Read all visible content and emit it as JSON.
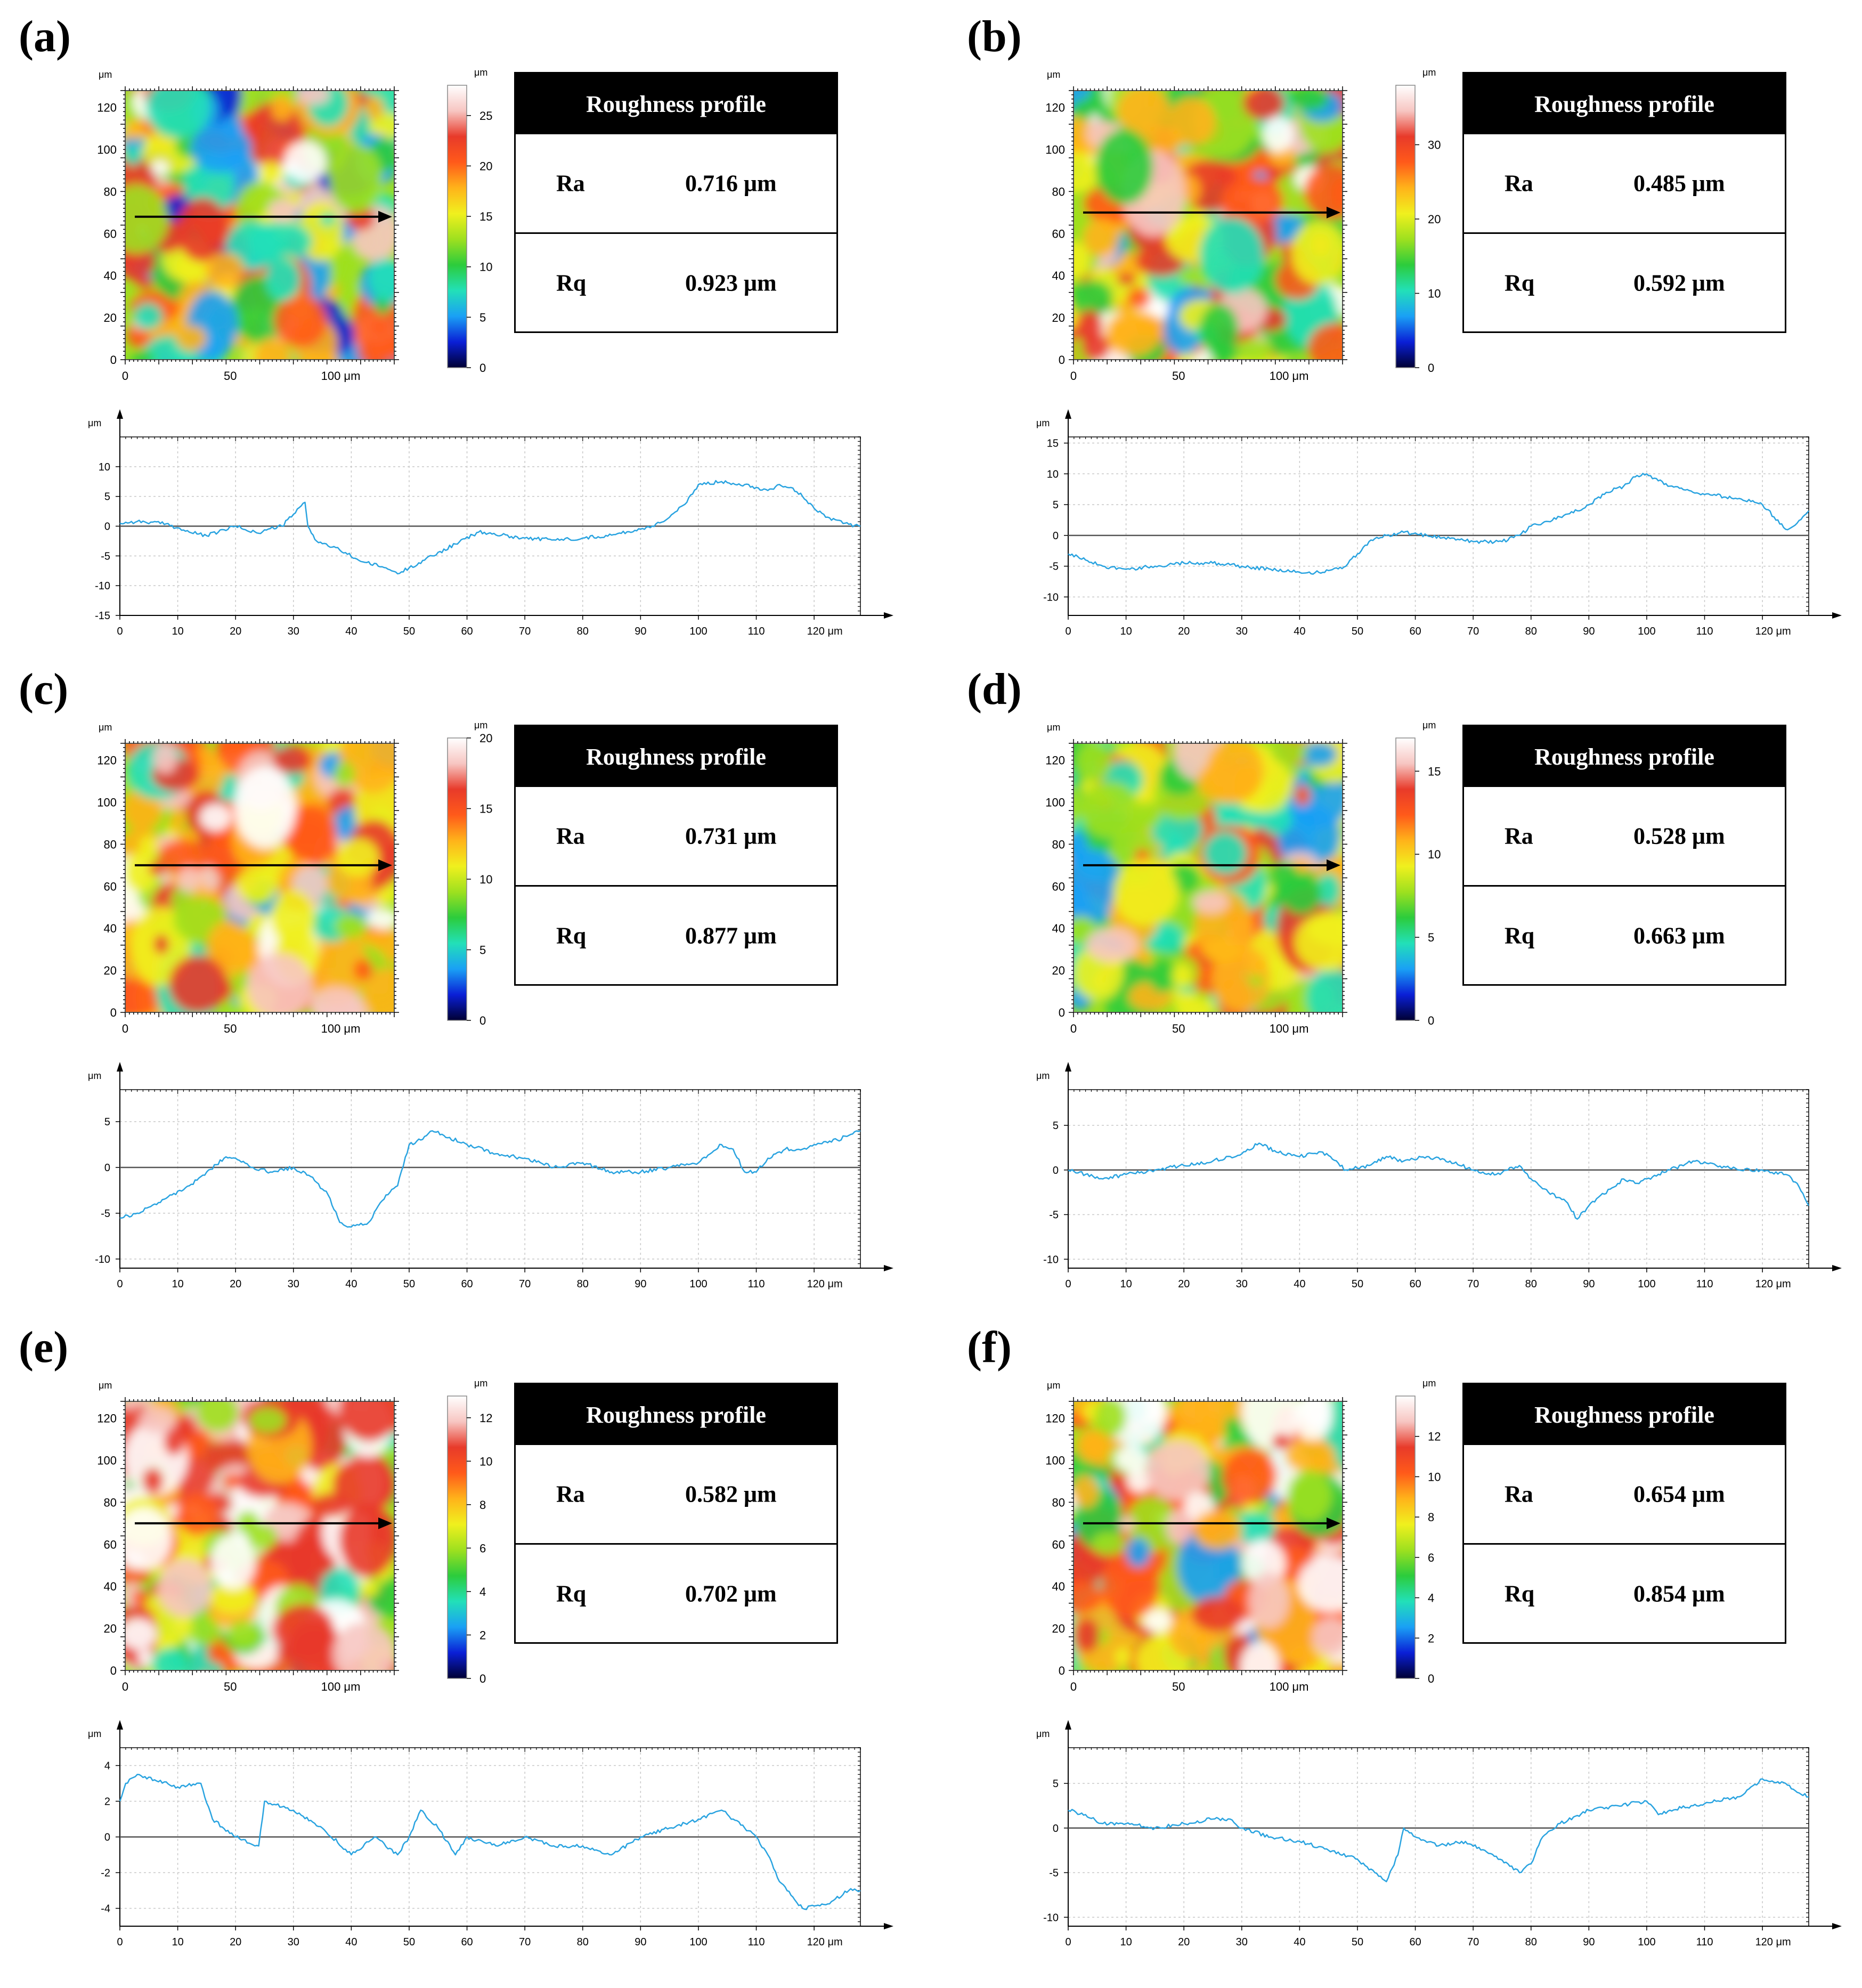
{
  "colors": {
    "profile_line": "#29a3e0",
    "axis": "#000000",
    "grid": "#c8c8c8",
    "table_header_bg": "#000000",
    "table_header_text": "#ffffff",
    "colormap": [
      "#000033",
      "#0a1fd6",
      "#1aa0f5",
      "#22e0b8",
      "#2ccc3c",
      "#9ee01f",
      "#f0f01e",
      "#ffb31a",
      "#ff5a1a",
      "#e83a2a",
      "#f7c6c2",
      "#ffffff"
    ]
  },
  "table_title": "Roughness profile",
  "unit_um": "μm",
  "map_x_ticks": [
    "0",
    "50",
    "100 μm"
  ],
  "map_y_ticks": [
    "0",
    "20",
    "40",
    "60",
    "80",
    "100",
    "120"
  ],
  "panels": [
    {
      "label": "(a)",
      "Ra_label": "Ra",
      "Ra_value": "0.716 μm",
      "Rq_label": "Rq",
      "Rq_value": "0.923 μm"
    },
    {
      "label": "(b)",
      "Ra_label": "Ra",
      "Ra_value": "0.485 μm",
      "Rq_label": "Rq",
      "Rq_value": "0.592 μm"
    },
    {
      "label": "(c)",
      "Ra_label": "Ra",
      "Ra_value": "0.731 μm",
      "Rq_label": "Rq",
      "Rq_value": "0.877 μm"
    },
    {
      "label": "(d)",
      "Ra_label": "Ra",
      "Ra_value": "0.528 μm",
      "Rq_label": "Rq",
      "Rq_value": "0.663 μm"
    },
    {
      "label": "(e)",
      "Ra_label": "Ra",
      "Ra_value": "0.582 μm",
      "Rq_label": "Rq",
      "Rq_value": "0.702 μm"
    },
    {
      "label": "(f)",
      "Ra_label": "Ra",
      "Ra_value": "0.654 μm",
      "Rq_label": "Rq",
      "Rq_value": "0.854 μm"
    }
  ],
  "chart_data": [
    {
      "panel": "(a)",
      "type": "line",
      "title": "Roughness profile",
      "heightmap": {
        "xlabel_unit": "μm",
        "x_range": [
          0,
          128
        ],
        "y_range": [
          0,
          128
        ],
        "colorbar_range": [
          0,
          28
        ],
        "colorbar_ticks": [
          "0",
          "5",
          "10",
          "15",
          "20",
          "25"
        ],
        "scan_line_y": 68,
        "colorbar_unit": "μm"
      },
      "profile": {
        "xlabel": "μm",
        "ylabel": "μm",
        "xlim": [
          0,
          128
        ],
        "ylim": [
          -15,
          15
        ],
        "x_ticks": [
          "0",
          "10",
          "20",
          "30",
          "40",
          "50",
          "60",
          "70",
          "80",
          "90",
          "100",
          "110",
          "120 μm"
        ],
        "y_ticks": [
          "-15",
          "-10",
          "-5",
          "0",
          "5",
          "10"
        ],
        "x": [
          0,
          3,
          8,
          12,
          15,
          20,
          24,
          26,
          28,
          30,
          32,
          32.5,
          34,
          38,
          42,
          46,
          48,
          50,
          54,
          58,
          62,
          66,
          70,
          75,
          80,
          85,
          90,
          92,
          95,
          98,
          100,
          104,
          108,
          110,
          112,
          114,
          116,
          118,
          120,
          122,
          124,
          126,
          128
        ],
        "y": [
          0.5,
          0.8,
          0.4,
          -1,
          -1.6,
          0,
          -1.2,
          -0.4,
          0,
          2,
          4,
          0,
          -2.5,
          -4,
          -6,
          -7,
          -8,
          -7,
          -5,
          -3,
          -1,
          -1.5,
          -2,
          -2.3,
          -2,
          -1.5,
          -0.5,
          0,
          1.5,
          4,
          7,
          7.5,
          7,
          6.5,
          6,
          7,
          6.5,
          5,
          3,
          1.5,
          1,
          0.3,
          0
        ]
      }
    },
    {
      "panel": "(b)",
      "type": "line",
      "title": "Roughness profile",
      "heightmap": {
        "xlabel_unit": "μm",
        "x_range": [
          0,
          128
        ],
        "y_range": [
          0,
          128
        ],
        "colorbar_range": [
          0,
          38
        ],
        "colorbar_ticks": [
          "0",
          "10",
          "20",
          "30"
        ],
        "scan_line_y": 70,
        "colorbar_unit": "μm"
      },
      "profile": {
        "xlabel": "μm",
        "ylabel": "μm",
        "xlim": [
          0,
          128
        ],
        "ylim": [
          -13,
          16
        ],
        "x_ticks": [
          "0",
          "10",
          "20",
          "30",
          "40",
          "50",
          "60",
          "70",
          "80",
          "90",
          "100",
          "110",
          "120 μm"
        ],
        "y_ticks": [
          "-10",
          "-5",
          "0",
          "5",
          "10",
          "15"
        ],
        "x": [
          0,
          3,
          6,
          10,
          15,
          20,
          25,
          30,
          35,
          40,
          44,
          48,
          50,
          52,
          55,
          58,
          62,
          66,
          70,
          75,
          78,
          80,
          82,
          85,
          88,
          90,
          93,
          96,
          98,
          100,
          104,
          108,
          112,
          116,
          118,
          120,
          122,
          124,
          126,
          128
        ],
        "y": [
          -3,
          -4,
          -5,
          -5.5,
          -5,
          -4.5,
          -4.5,
          -5,
          -5.5,
          -6,
          -6,
          -5,
          -3,
          -1,
          0,
          0.5,
          0,
          -0.5,
          -1,
          -1,
          0,
          1.5,
          2,
          3,
          4,
          5,
          7,
          8,
          9.5,
          10,
          8,
          7,
          6.5,
          6,
          5.5,
          5,
          3,
          1,
          2,
          4
        ]
      }
    },
    {
      "panel": "(c)",
      "type": "line",
      "title": "Roughness profile",
      "heightmap": {
        "xlabel_unit": "μm",
        "x_range": [
          0,
          128
        ],
        "y_range": [
          0,
          128
        ],
        "colorbar_range": [
          0,
          20
        ],
        "colorbar_ticks": [
          "0",
          "5",
          "10",
          "15",
          "20"
        ],
        "scan_line_y": 70,
        "colorbar_unit": "μm"
      },
      "profile": {
        "xlabel": "μm",
        "ylabel": "μm",
        "xlim": [
          0,
          128
        ],
        "ylim": [
          -11,
          8.5
        ],
        "x_ticks": [
          "0",
          "10",
          "20",
          "30",
          "40",
          "50",
          "60",
          "70",
          "80",
          "90",
          "100",
          "110",
          "120 μm"
        ],
        "y_ticks": [
          "-10",
          "-5",
          "0",
          "5"
        ],
        "x": [
          0,
          3,
          6,
          9,
          12,
          15,
          18,
          20,
          23,
          26,
          30,
          33,
          36,
          38,
          40,
          43,
          46,
          48,
          50,
          52,
          54,
          56,
          60,
          65,
          70,
          75,
          80,
          85,
          90,
          95,
          100,
          104,
          106,
          108,
          110,
          112,
          115,
          118,
          120,
          124,
          126,
          128
        ],
        "y": [
          -5.5,
          -5,
          -4,
          -3,
          -2,
          -0.5,
          1,
          1,
          0,
          -0.5,
          0,
          -1,
          -3,
          -6,
          -6.5,
          -6,
          -3,
          -2,
          2.5,
          3,
          4,
          3.5,
          2.5,
          1.5,
          1,
          0,
          0.5,
          -0.5,
          -0.5,
          0,
          0.5,
          2.5,
          2,
          -0.5,
          -0.5,
          1,
          2,
          2,
          2.5,
          3,
          3.5,
          4
        ]
      }
    },
    {
      "panel": "(d)",
      "type": "line",
      "title": "Roughness profile",
      "heightmap": {
        "xlabel_unit": "μm",
        "x_range": [
          0,
          128
        ],
        "y_range": [
          0,
          128
        ],
        "colorbar_range": [
          0,
          17
        ],
        "colorbar_ticks": [
          "0",
          "5",
          "10",
          "15"
        ],
        "scan_line_y": 70,
        "colorbar_unit": "μm"
      },
      "profile": {
        "xlabel": "μm",
        "ylabel": "μm",
        "xlim": [
          0,
          128
        ],
        "ylim": [
          -11,
          9
        ],
        "x_ticks": [
          "0",
          "10",
          "20",
          "30",
          "40",
          "50",
          "60",
          "70",
          "80",
          "90",
          "100",
          "110",
          "120 μm"
        ],
        "y_ticks": [
          "-10",
          "-5",
          "0",
          "5"
        ],
        "x": [
          0,
          3,
          6,
          10,
          15,
          20,
          25,
          30,
          33,
          36,
          40,
          44,
          48,
          52,
          55,
          58,
          62,
          66,
          70,
          74,
          78,
          80,
          83,
          86,
          88,
          90,
          94,
          96,
          98,
          100,
          104,
          108,
          112,
          116,
          120,
          124,
          126,
          128
        ],
        "y": [
          0,
          -0.5,
          -1,
          -0.5,
          0,
          0.5,
          1,
          1.8,
          3,
          2,
          1.5,
          2,
          0,
          0.5,
          1.5,
          1,
          1.5,
          1,
          0,
          -0.5,
          0.5,
          -1,
          -2.5,
          -3.5,
          -5.5,
          -4,
          -2,
          -1,
          -1.5,
          -1,
          0,
          1,
          0.5,
          0,
          0,
          -0.5,
          -1.5,
          -4
        ]
      }
    },
    {
      "panel": "(e)",
      "type": "line",
      "title": "Roughness profile",
      "heightmap": {
        "xlabel_unit": "μm",
        "x_range": [
          0,
          128
        ],
        "y_range": [
          0,
          128
        ],
        "colorbar_range": [
          0,
          13
        ],
        "colorbar_ticks": [
          "0",
          "2",
          "4",
          "6",
          "8",
          "10",
          "12"
        ],
        "scan_line_y": 70,
        "colorbar_unit": "μm"
      },
      "profile": {
        "xlabel": "μm",
        "ylabel": "μm",
        "xlim": [
          0,
          128
        ],
        "ylim": [
          -5,
          5
        ],
        "x_ticks": [
          "0",
          "10",
          "20",
          "30",
          "40",
          "50",
          "60",
          "70",
          "80",
          "90",
          "100",
          "110",
          "120 μm"
        ],
        "y_ticks": [
          "-4",
          "-2",
          "0",
          "2",
          "4"
        ],
        "x": [
          0,
          1,
          3,
          6,
          10,
          14,
          16,
          20,
          24,
          25,
          27,
          30,
          35,
          40,
          44,
          48,
          50,
          52,
          55,
          58,
          60,
          65,
          70,
          75,
          80,
          85,
          90,
          95,
          100,
          104,
          106,
          108,
          110,
          112,
          114,
          118,
          122,
          126,
          128
        ],
        "y": [
          2,
          3,
          3.5,
          3.2,
          2.8,
          3,
          1,
          0,
          -0.5,
          2,
          1.8,
          1.5,
          0.5,
          -1,
          0,
          -1,
          0,
          1.5,
          0.5,
          -1,
          0,
          -0.5,
          0,
          -0.5,
          -0.5,
          -1,
          0,
          0.5,
          1,
          1.5,
          1,
          0.5,
          0,
          -1,
          -2.5,
          -4,
          -3.8,
          -3,
          -3
        ]
      }
    },
    {
      "panel": "(f)",
      "type": "line",
      "title": "Roughness profile",
      "heightmap": {
        "xlabel_unit": "μm",
        "x_range": [
          0,
          128
        ],
        "y_range": [
          0,
          128
        ],
        "colorbar_range": [
          0,
          14
        ],
        "colorbar_ticks": [
          "0",
          "2",
          "4",
          "6",
          "8",
          "10",
          "12"
        ],
        "scan_line_y": 70,
        "colorbar_unit": "μm"
      },
      "profile": {
        "xlabel": "μm",
        "ylabel": "μm",
        "xlim": [
          0,
          128
        ],
        "ylim": [
          -11,
          9
        ],
        "x_ticks": [
          "0",
          "10",
          "20",
          "30",
          "40",
          "50",
          "60",
          "70",
          "80",
          "90",
          "100",
          "110",
          "120 μm"
        ],
        "y_ticks": [
          "-10",
          "-5",
          "0",
          "5"
        ],
        "x": [
          0,
          3,
          6,
          10,
          15,
          20,
          25,
          28,
          30,
          35,
          40,
          45,
          50,
          53,
          55,
          57,
          58,
          60,
          64,
          68,
          72,
          76,
          78,
          80,
          82,
          85,
          90,
          95,
          100,
          102,
          104,
          108,
          112,
          116,
          120,
          124,
          126,
          128
        ],
        "y": [
          2,
          1.5,
          0.5,
          0.5,
          0,
          0.5,
          1,
          1,
          0,
          -1,
          -1.5,
          -2.5,
          -3.5,
          -5,
          -6,
          -3,
          0,
          -1,
          -2,
          -1.5,
          -2.5,
          -4,
          -5,
          -4,
          -1,
          0.5,
          2,
          2.5,
          3,
          1.5,
          2,
          2.5,
          3,
          3.5,
          5.5,
          5,
          4,
          3.5
        ]
      }
    }
  ]
}
